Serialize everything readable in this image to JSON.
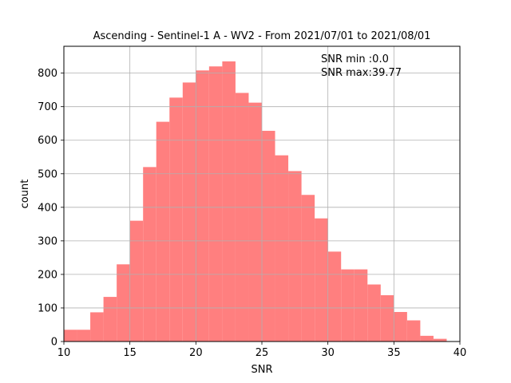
{
  "chart_data": {
    "type": "bar",
    "title": "Ascending - Sentinel-1 A - WV2 - From 2021/07/01 to 2021/08/01",
    "xlabel": "SNR",
    "ylabel": "count",
    "xlim": [
      10,
      40
    ],
    "ylim": [
      0,
      880
    ],
    "xticks": [
      10,
      15,
      20,
      25,
      30,
      35,
      40
    ],
    "yticks": [
      0,
      100,
      200,
      300,
      400,
      500,
      600,
      700,
      800
    ],
    "grid": true,
    "bar_color": "#ff7f7f",
    "annotations": [
      "SNR min :0.0",
      "SNR max:39.77"
    ],
    "bins": [
      {
        "x0": 10,
        "x1": 11,
        "value": 35
      },
      {
        "x0": 11,
        "x1": 12,
        "value": 35
      },
      {
        "x0": 12,
        "x1": 13,
        "value": 87
      },
      {
        "x0": 13,
        "x1": 14,
        "value": 133
      },
      {
        "x0": 14,
        "x1": 15,
        "value": 230
      },
      {
        "x0": 15,
        "x1": 16,
        "value": 360
      },
      {
        "x0": 16,
        "x1": 17,
        "value": 520
      },
      {
        "x0": 17,
        "x1": 18,
        "value": 655
      },
      {
        "x0": 18,
        "x1": 19,
        "value": 727
      },
      {
        "x0": 19,
        "x1": 20,
        "value": 772
      },
      {
        "x0": 20,
        "x1": 21,
        "value": 808
      },
      {
        "x0": 21,
        "x1": 22,
        "value": 820
      },
      {
        "x0": 22,
        "x1": 23,
        "value": 835
      },
      {
        "x0": 23,
        "x1": 24,
        "value": 741
      },
      {
        "x0": 24,
        "x1": 25,
        "value": 712
      },
      {
        "x0": 25,
        "x1": 26,
        "value": 628
      },
      {
        "x0": 26,
        "x1": 27,
        "value": 555
      },
      {
        "x0": 27,
        "x1": 28,
        "value": 508
      },
      {
        "x0": 28,
        "x1": 29,
        "value": 437
      },
      {
        "x0": 29,
        "x1": 30,
        "value": 367
      },
      {
        "x0": 30,
        "x1": 31,
        "value": 268
      },
      {
        "x0": 31,
        "x1": 32,
        "value": 215
      },
      {
        "x0": 32,
        "x1": 33,
        "value": 215
      },
      {
        "x0": 33,
        "x1": 34,
        "value": 170
      },
      {
        "x0": 34,
        "x1": 35,
        "value": 138
      },
      {
        "x0": 35,
        "x1": 36,
        "value": 88
      },
      {
        "x0": 36,
        "x1": 37,
        "value": 63
      },
      {
        "x0": 37,
        "x1": 38,
        "value": 17
      },
      {
        "x0": 38,
        "x1": 39,
        "value": 8
      }
    ]
  }
}
